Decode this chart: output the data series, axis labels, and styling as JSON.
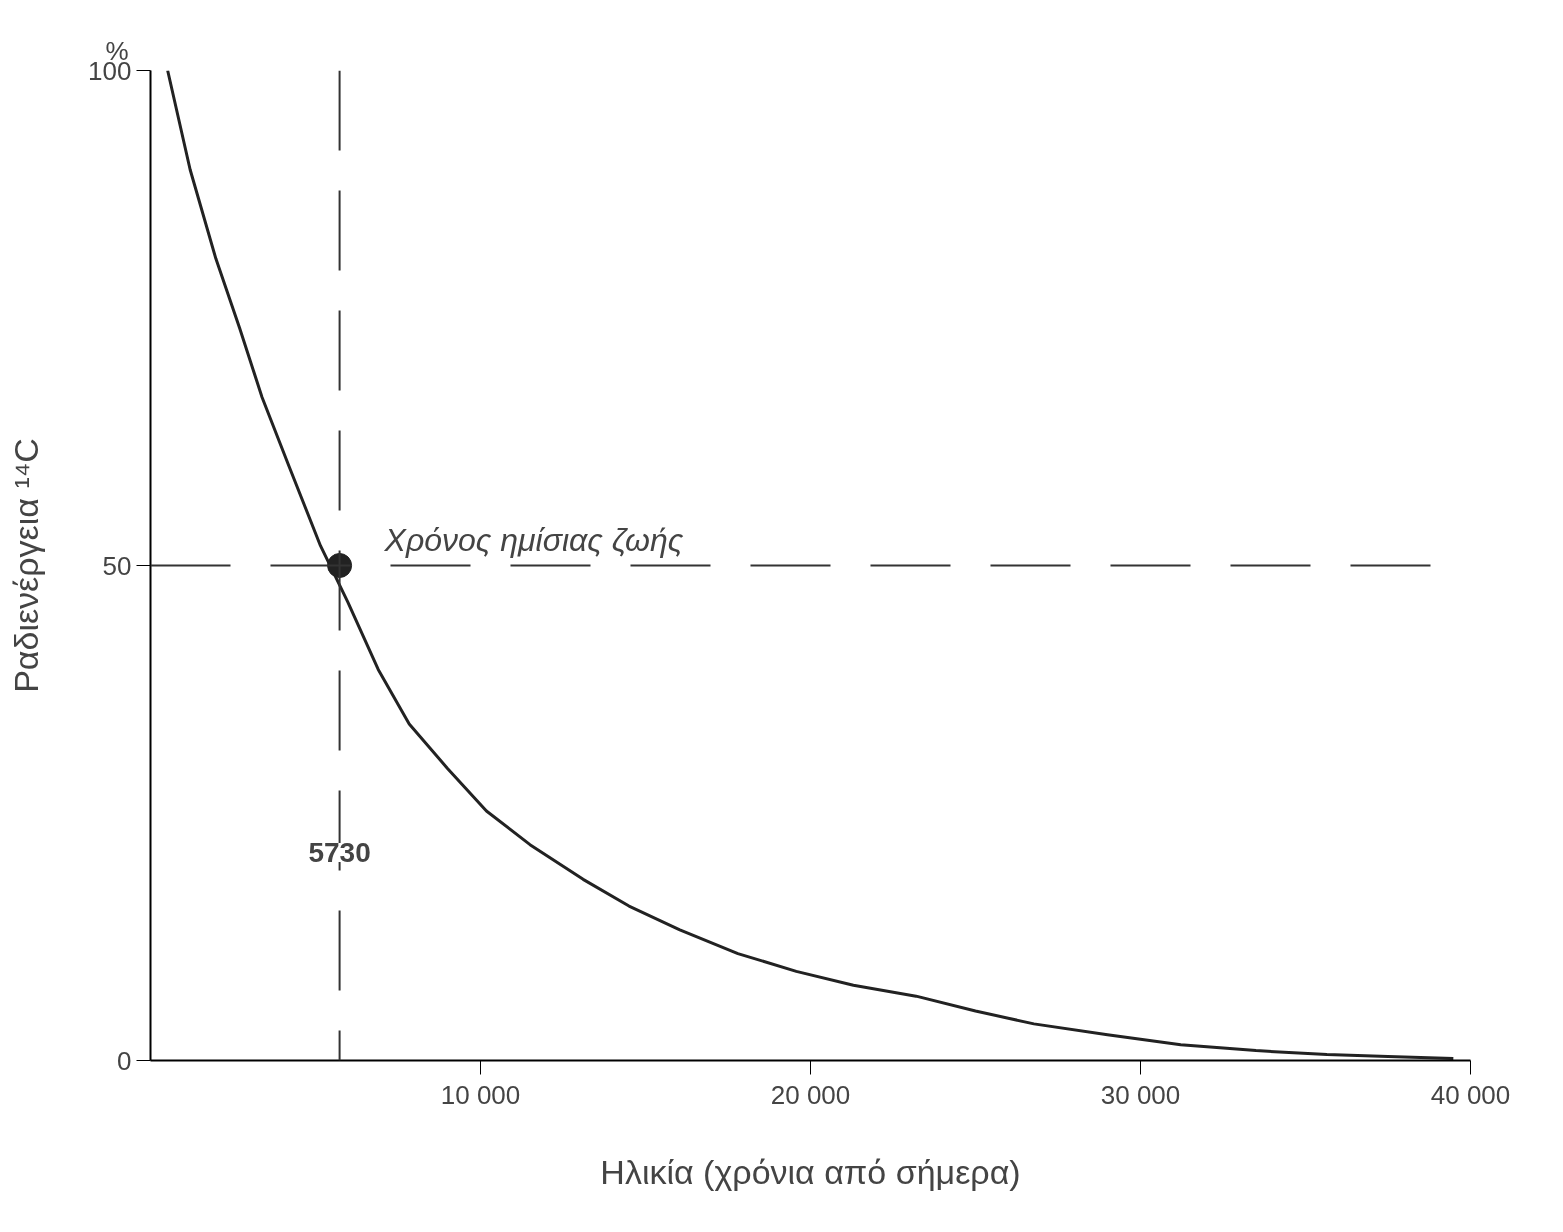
{
  "chart_data": {
    "type": "line",
    "xlabel": "Ηλικία (χρόνια από σήμερα)",
    "ylabel": "Ραδιενέργεια ¹⁴C",
    "xlim": [
      0,
      40000
    ],
    "ylim": [
      0,
      100
    ],
    "xticks": [
      {
        "value": 10000,
        "label": "10 000"
      },
      {
        "value": 20000,
        "label": "20 000"
      },
      {
        "value": 30000,
        "label": "30 000"
      },
      {
        "value": 40000,
        "label": "40 000"
      }
    ],
    "yticks": [
      0,
      50,
      100
    ],
    "grid": false,
    "line_style": "solid",
    "series": [
      {
        "color": "#222222",
        "marker": "none",
        "x": [
          520,
          1200,
          1980,
          2700,
          3380,
          4200,
          5150,
          5980,
          6900,
          7840,
          9000,
          10180,
          11500,
          13110,
          14500,
          16040,
          17800,
          19570,
          21300,
          23200,
          25000,
          26770,
          29000,
          31220,
          33500,
          35650,
          37500,
          39480
        ],
        "values": [
          100,
          90,
          81,
          74,
          67,
          60,
          52,
          46.3,
          39.5,
          34,
          29.5,
          25.2,
          21.8,
          18.3,
          15.6,
          13.2,
          10.8,
          9.0,
          7.6,
          6.5,
          5.0,
          3.7,
          2.6,
          1.6,
          1.0,
          0.6,
          0.4,
          0.2
        ]
      },
      {
        "type": "scatter",
        "color": "#222222",
        "marker": "circle",
        "x": [
          5730
        ],
        "values": [
          50
        ]
      }
    ],
    "ref_lines": [
      {
        "axis": "x",
        "value": 5730,
        "label": null,
        "line_style": "dashed",
        "color": "#333333"
      },
      {
        "axis": "y",
        "value": 50,
        "label": null,
        "line_style": "dashed",
        "color": "#333333"
      }
    ],
    "annotations": [
      "%",
      {
        "text": "Χρόνος ημίσιας ζωής",
        "x": 5730,
        "y": 50
      },
      {
        "text": "5730",
        "x": 5730,
        "y": 21
      }
    ]
  }
}
